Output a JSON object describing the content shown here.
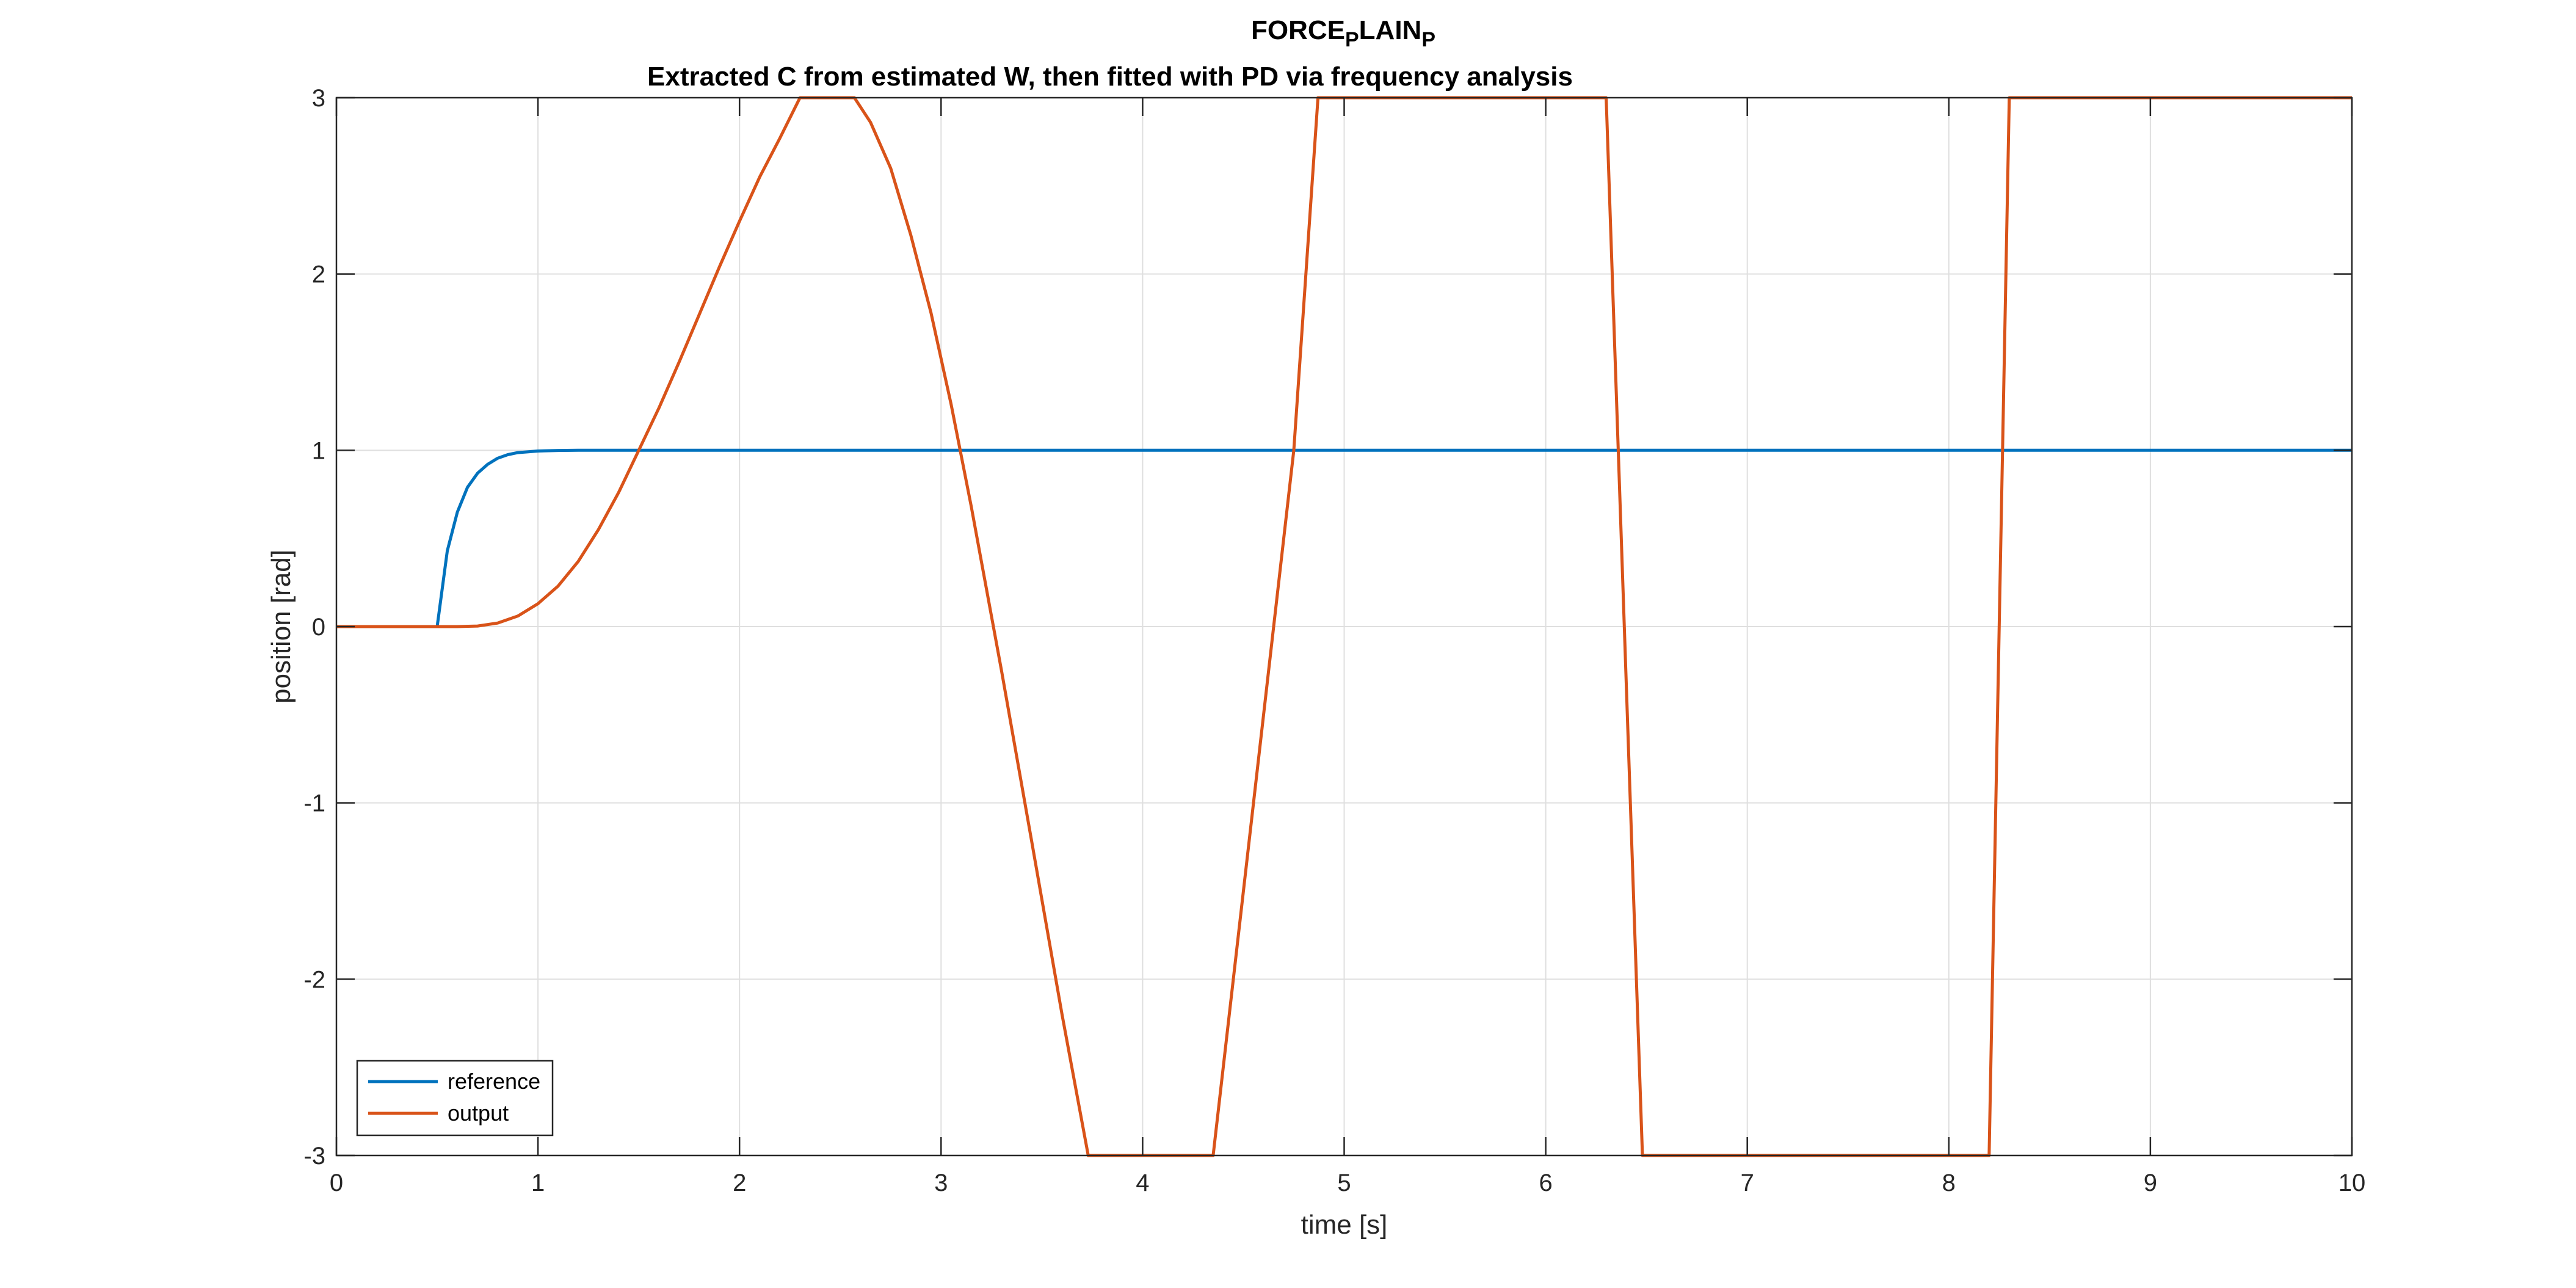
{
  "chart_data": {
    "type": "line",
    "title_main": "FORCE",
    "title_main_sub1": "P",
    "title_main_mid": "LAIN",
    "title_main_sub2": "P",
    "subtitle": "Extracted C from estimated W, then fitted with PD via frequency analysis",
    "xlabel": "time [s]",
    "ylabel": "position [rad]",
    "xlim": [
      0,
      10
    ],
    "ylim": [
      -3,
      3
    ],
    "xticks": [
      0,
      1,
      2,
      3,
      4,
      5,
      6,
      7,
      8,
      9,
      10
    ],
    "yticks": [
      -3,
      -2,
      -1,
      0,
      1,
      2,
      3
    ],
    "xtick_labels": [
      "0",
      "1",
      "2",
      "3",
      "4",
      "5",
      "6",
      "7",
      "8",
      "9",
      "10"
    ],
    "ytick_labels": [
      "-3",
      "-2",
      "-1",
      "0",
      "1",
      "2",
      "3"
    ],
    "grid": true,
    "legend_position": "bottom-left",
    "series": [
      {
        "name": "reference",
        "color": "#0072BD",
        "points": [
          [
            0,
            0
          ],
          [
            0.5,
            0
          ],
          [
            0.5,
            0.0
          ],
          [
            0.55,
            0.43
          ],
          [
            0.6,
            0.65
          ],
          [
            0.65,
            0.79
          ],
          [
            0.7,
            0.87
          ],
          [
            0.75,
            0.92
          ],
          [
            0.8,
            0.955
          ],
          [
            0.85,
            0.975
          ],
          [
            0.9,
            0.987
          ],
          [
            1.0,
            0.996
          ],
          [
            1.1,
            0.999
          ],
          [
            1.2,
            1.0
          ],
          [
            10,
            1.0
          ]
        ]
      },
      {
        "name": "output",
        "color": "#D95319",
        "points": [
          [
            0,
            0
          ],
          [
            0.6,
            0
          ],
          [
            0.7,
            0.003
          ],
          [
            0.8,
            0.02
          ],
          [
            0.9,
            0.06
          ],
          [
            1.0,
            0.13
          ],
          [
            1.1,
            0.23
          ],
          [
            1.2,
            0.37
          ],
          [
            1.3,
            0.55
          ],
          [
            1.4,
            0.76
          ],
          [
            1.5,
            1.0
          ],
          [
            1.6,
            1.24
          ],
          [
            1.7,
            1.5
          ],
          [
            1.8,
            1.77
          ],
          [
            1.9,
            2.04
          ],
          [
            2.0,
            2.3
          ],
          [
            2.1,
            2.55
          ],
          [
            2.2,
            2.77
          ],
          [
            2.3,
            3.0
          ],
          [
            2.57,
            3.0
          ],
          [
            2.65,
            2.86
          ],
          [
            2.75,
            2.6
          ],
          [
            2.85,
            2.22
          ],
          [
            2.95,
            1.78
          ],
          [
            3.05,
            1.26
          ],
          [
            3.15,
            0.68
          ],
          [
            3.3,
            -0.25
          ],
          [
            3.45,
            -1.22
          ],
          [
            3.6,
            -2.2
          ],
          [
            3.73,
            -3.0
          ],
          [
            4.35,
            -3.0
          ],
          [
            4.55,
            -1.0
          ],
          [
            4.75,
            1.0
          ],
          [
            4.87,
            3.0
          ],
          [
            6.3,
            3.0
          ],
          [
            6.48,
            -3.0
          ],
          [
            8.2,
            -3.0
          ],
          [
            8.3,
            3.0
          ],
          [
            10,
            3.0
          ]
        ]
      }
    ]
  }
}
